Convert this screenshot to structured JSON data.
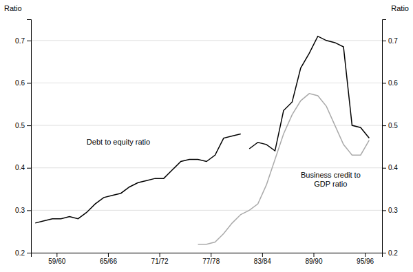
{
  "chart_data": {
    "type": "line",
    "ylabel": "Ratio",
    "y2label": "Ratio",
    "xlim": [
      1956.5,
      1997.5
    ],
    "xticks": [
      {
        "value": 1959.5,
        "label": "59/60"
      },
      {
        "value": 1965.5,
        "label": "65/66"
      },
      {
        "value": 1971.5,
        "label": "71/72"
      },
      {
        "value": 1977.5,
        "label": "77/78"
      },
      {
        "value": 1983.5,
        "label": "83/84"
      },
      {
        "value": 1989.5,
        "label": "89/90"
      },
      {
        "value": 1995.5,
        "label": "95/96"
      }
    ],
    "ylim": [
      0.2,
      0.75
    ],
    "yticks": [
      0.2,
      0.3,
      0.4,
      0.5,
      0.6,
      0.7
    ],
    "y2lim": [
      0.2,
      0.75
    ],
    "y2ticks": [
      0.2,
      0.3,
      0.4,
      0.5,
      0.6,
      0.7
    ],
    "grid": true,
    "series": [
      {
        "color": "#000000",
        "x": [
          1957,
          1958,
          1959,
          1960,
          1961,
          1962,
          1963,
          1964,
          1965,
          1966,
          1967,
          1968,
          1969,
          1970,
          1971,
          1972,
          1973,
          1974,
          1975,
          1976,
          1977,
          1978,
          1979,
          1980,
          1981
        ],
        "values": [
          0.27,
          0.275,
          0.28,
          0.28,
          0.285,
          0.28,
          0.295,
          0.315,
          0.33,
          0.335,
          0.34,
          0.355,
          0.365,
          0.37,
          0.375,
          0.375,
          0.395,
          0.415,
          0.42,
          0.42,
          0.415,
          0.43,
          0.47,
          0.475,
          0.48
        ]
      },
      {
        "color": "#000000",
        "x": [
          1982,
          1983,
          1984,
          1985,
          1986,
          1987,
          1988,
          1989,
          1990,
          1991,
          1992,
          1993,
          1994,
          1995,
          1996
        ],
        "values": [
          0.445,
          0.46,
          0.455,
          0.44,
          0.535,
          0.555,
          0.635,
          0.67,
          0.71,
          0.7,
          0.695,
          0.685,
          0.5,
          0.495,
          0.47
        ]
      },
      {
        "color": "#aaaaaa",
        "x": [
          1976,
          1977,
          1978,
          1979,
          1980,
          1981,
          1982,
          1983,
          1984,
          1985,
          1986,
          1987,
          1988,
          1989,
          1990,
          1991,
          1992,
          1993,
          1994,
          1995,
          1996
        ],
        "values": [
          0.22,
          0.22,
          0.225,
          0.245,
          0.27,
          0.29,
          0.3,
          0.315,
          0.36,
          0.42,
          0.48,
          0.525,
          0.558,
          0.575,
          0.57,
          0.545,
          0.5,
          0.455,
          0.43,
          0.43,
          0.465
        ]
      }
    ],
    "annotations": [
      {
        "text": "Debt to equity ratio",
        "x": 1963,
        "y": 0.455
      },
      {
        "text": "Business credit to\nGDP ratio",
        "x": 1991.5,
        "y": 0.355
      }
    ]
  }
}
